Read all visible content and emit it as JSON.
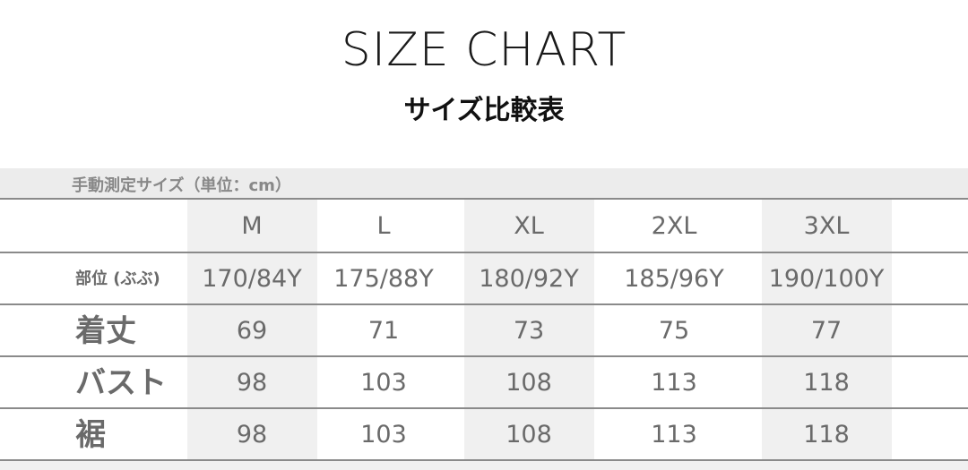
{
  "title": "SIZE CHART",
  "subtitle": "サイズ比較表",
  "unit_note": "手動測定サイズ（単位：cm）",
  "sizes": [
    "M",
    "L",
    "XL",
    "2XL",
    "3XL"
  ],
  "rows": [
    {
      "label": "部位 (ぶぶ)",
      "values": [
        "170/84Y",
        "175/88Y",
        "180/92Y",
        "185/96Y",
        "190/100Y"
      ]
    },
    {
      "label": "着丈",
      "values": [
        "69",
        "71",
        "73",
        "75",
        "77"
      ]
    },
    {
      "label": "バスト",
      "values": [
        "98",
        "103",
        "108",
        "113",
        "118"
      ]
    },
    {
      "label": "裾",
      "values": [
        "98",
        "103",
        "108",
        "113",
        "118"
      ]
    }
  ]
}
